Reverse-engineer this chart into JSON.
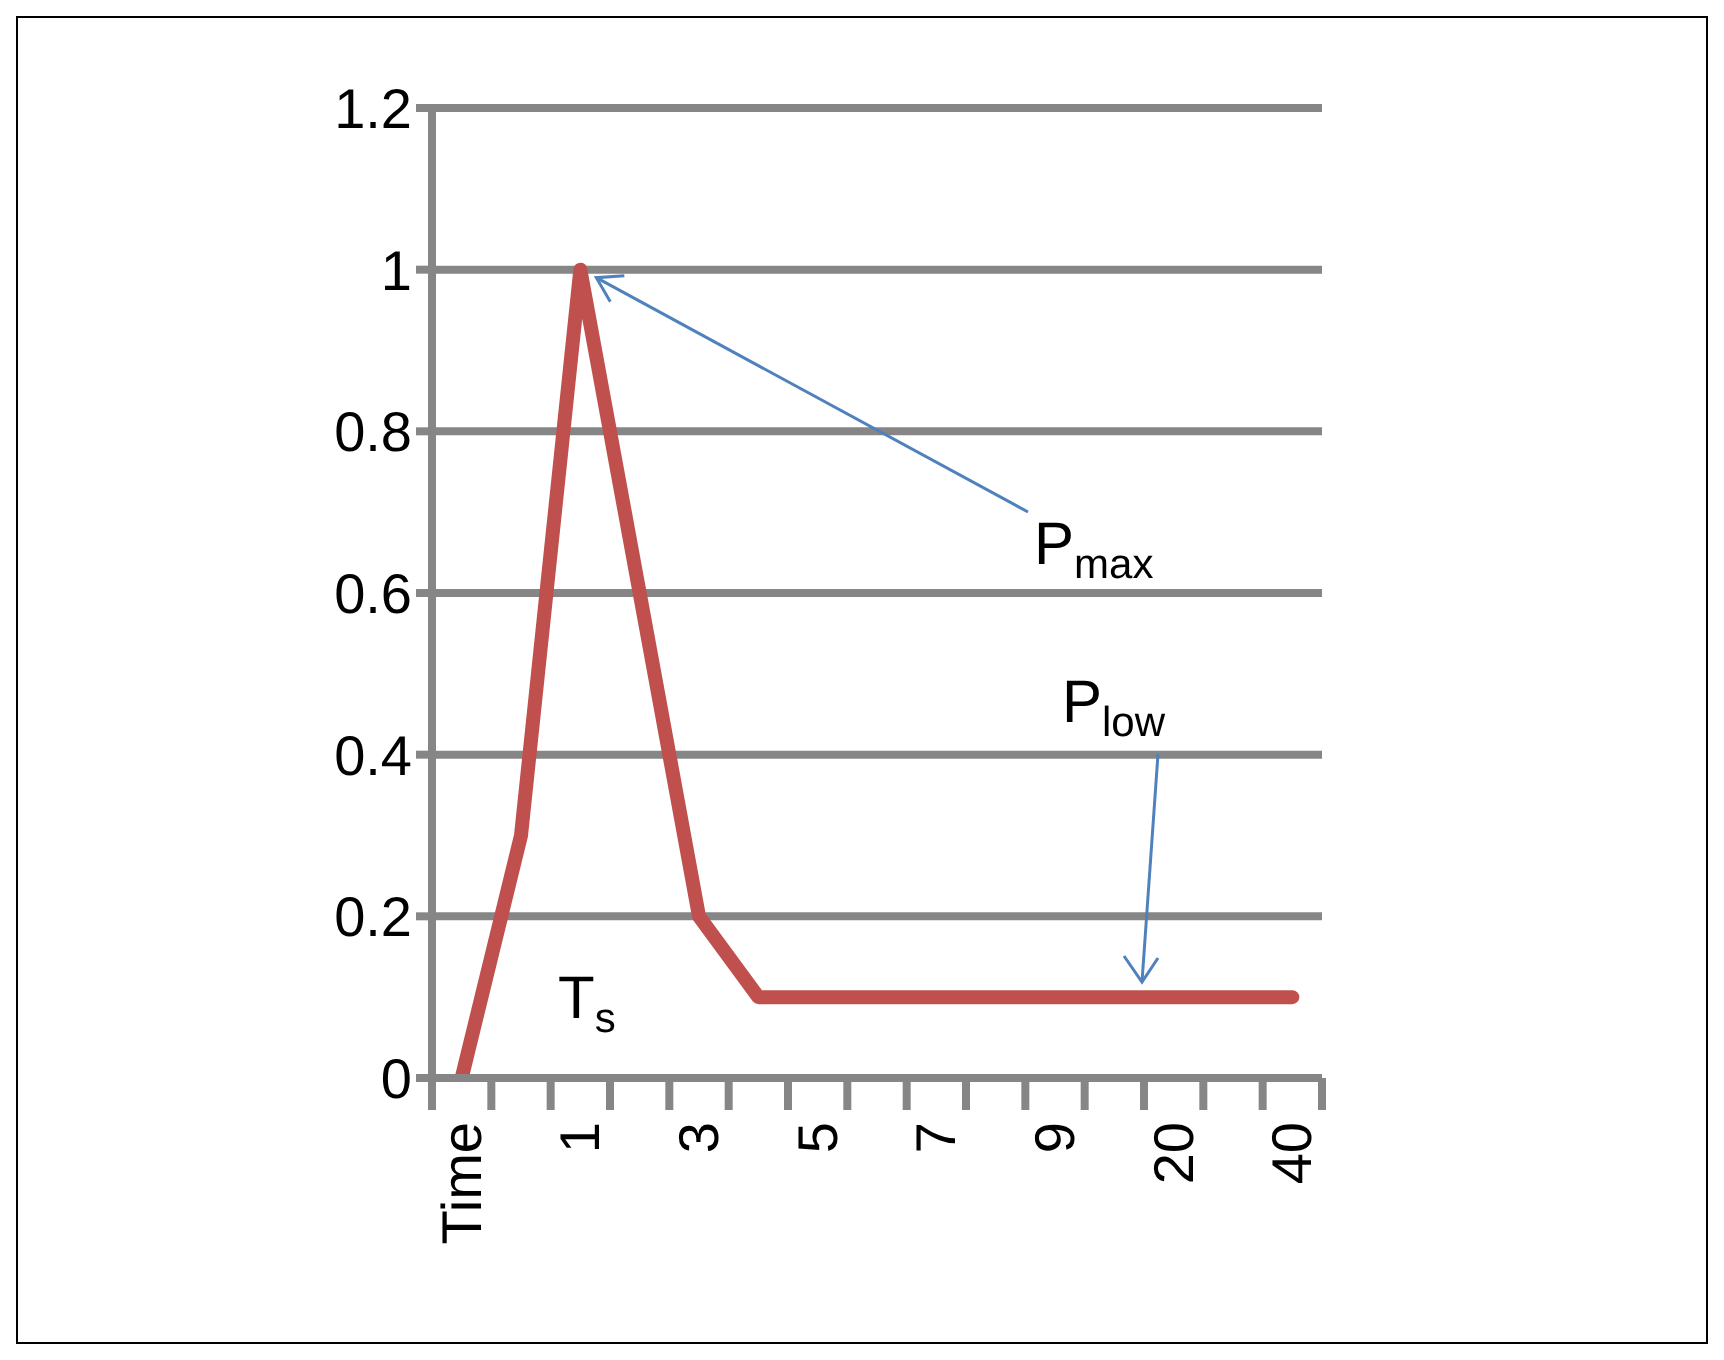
{
  "chart_data": {
    "type": "line",
    "categories": [
      "Time",
      null,
      "1",
      null,
      "3",
      null,
      "5",
      null,
      "7",
      null,
      "9",
      null,
      "20",
      null,
      "40"
    ],
    "series": [
      {
        "color": "#c0504d",
        "values": [
          0,
          0.3,
          1,
          0.6,
          0.2,
          0.1,
          0.1,
          0.1,
          0.1,
          0.1,
          0.1,
          0.1,
          0.1,
          0.1,
          0.1
        ]
      }
    ],
    "ylim": [
      0,
      1.2
    ],
    "yticks": [
      0,
      0.2,
      0.4,
      0.6,
      0.8,
      1,
      1.2
    ],
    "grid": "y",
    "line_style": "solid",
    "annotations": [
      {
        "text": "P$_{max}$",
        "x": "1",
        "y": 1
      },
      "P$_{low}$",
      "T$_{s}$"
    ]
  }
}
